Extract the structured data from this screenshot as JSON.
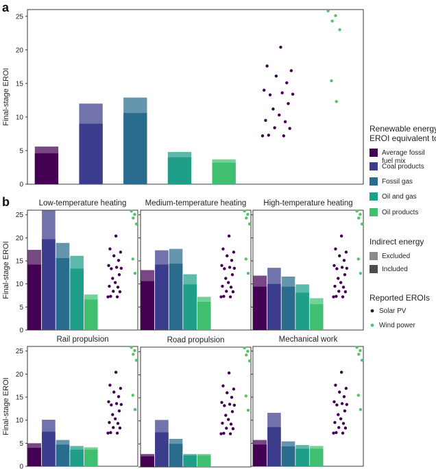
{
  "panel_a_letter": "a",
  "panel_b_letter": "b",
  "colors": {
    "Average fossil fuel mix": "#440154",
    "Coal products": "#3b3c8c",
    "Fossil gas": "#2a6c8e",
    "Oil and gas": "#1f9e89",
    "Oil products": "#3fbf6f",
    "Solar PV": "#440154",
    "Wind power": "#52c569"
  },
  "legend": {
    "renewable_heading": "Renewable energy\nEROI equivalent to",
    "renewable_items": [
      "Average fossil\nfuel mix",
      "Coal products",
      "Fossil gas",
      "Oil and gas",
      "Oil products"
    ],
    "indirect_heading": "Indirect energy",
    "indirect_items": [
      "Excluded",
      "Included"
    ],
    "reported_heading": "Reported EROIs",
    "reported_items": [
      "Solar PV",
      "Wind power"
    ]
  },
  "chart_data": [
    {
      "id": "a",
      "type": "bar",
      "title": "",
      "ylabel": "Final-stage EROI",
      "ylim": [
        0,
        26
      ],
      "yticks": [
        0,
        5,
        10,
        15,
        20,
        25
      ],
      "categories": [
        "Average fossil fuel mix",
        "Coal products",
        "Fossil gas",
        "Oil and gas",
        "Oil products"
      ],
      "series": [
        {
          "name": "Included",
          "values": [
            4.6,
            9.0,
            10.6,
            4.0,
            3.2
          ]
        },
        {
          "name": "Excluded",
          "values": [
            5.6,
            12.0,
            12.9,
            4.8,
            3.7
          ]
        }
      ],
      "reported": {
        "Solar PV": [
          20.4,
          17.6,
          16.9,
          16.1,
          15.1,
          14.0,
          13.6,
          13.4,
          13.3,
          12.0,
          11.2,
          10.3,
          9.5,
          9.3,
          8.4,
          8.3,
          7.3,
          7.2,
          7.2
        ],
        "Wind power": [
          25.8,
          25.1,
          24.3,
          23.0,
          15.4,
          12.3
        ]
      }
    },
    {
      "id": "b1",
      "type": "bar",
      "title": "Low-temperature heating",
      "ylabel": "Final-stage EROI",
      "ylim": [
        0,
        26
      ],
      "yticks": [
        0,
        5,
        10,
        15,
        20,
        25
      ],
      "categories": [
        "Average fossil fuel mix",
        "Coal products",
        "Fossil gas",
        "Oil and gas",
        "Oil products"
      ],
      "series": [
        {
          "name": "Included",
          "values": [
            14.2,
            19.7,
            15.6,
            13.3,
            6.6
          ]
        },
        {
          "name": "Excluded",
          "values": [
            17.4,
            26.0,
            18.9,
            16.1,
            7.7
          ]
        }
      ],
      "reported": {
        "Solar PV": [
          20.4,
          17.6,
          16.9,
          16.1,
          15.1,
          14.0,
          13.6,
          13.4,
          13.3,
          12.0,
          11.2,
          10.3,
          9.5,
          9.3,
          8.4,
          8.3,
          7.3,
          7.2,
          7.2
        ],
        "Wind power": [
          25.8,
          25.1,
          24.3,
          23.0,
          15.4,
          12.3
        ]
      }
    },
    {
      "id": "b2",
      "type": "bar",
      "title": "Medium-temperature heating",
      "ylabel": "",
      "ylim": [
        0,
        26
      ],
      "yticks": [
        0,
        5,
        10,
        15,
        20,
        25
      ],
      "categories": [
        "Average fossil fuel mix",
        "Coal products",
        "Fossil gas",
        "Oil and gas",
        "Oil products"
      ],
      "series": [
        {
          "name": "Included",
          "values": [
            10.6,
            14.2,
            14.4,
            9.9,
            6.1
          ]
        },
        {
          "name": "Excluded",
          "values": [
            13.0,
            17.3,
            17.6,
            12.1,
            7.2
          ]
        }
      ],
      "reported": {
        "Solar PV": [
          20.4,
          17.6,
          16.9,
          16.1,
          15.1,
          14.0,
          13.6,
          13.4,
          13.3,
          12.0,
          11.2,
          10.3,
          9.5,
          9.3,
          8.4,
          8.3,
          7.3,
          7.2,
          7.2
        ],
        "Wind power": [
          25.8,
          25.1,
          24.3,
          23.0,
          15.4,
          12.3
        ]
      }
    },
    {
      "id": "b3",
      "type": "bar",
      "title": "High-temperature heating",
      "ylabel": "",
      "ylim": [
        0,
        26
      ],
      "yticks": [
        0,
        5,
        10,
        15,
        20,
        25
      ],
      "categories": [
        "Average fossil fuel mix",
        "Coal products",
        "Fossil gas",
        "Oil and gas",
        "Oil products"
      ],
      "series": [
        {
          "name": "Included",
          "values": [
            9.4,
            10.0,
            9.4,
            8.1,
            5.6
          ]
        },
        {
          "name": "Excluded",
          "values": [
            11.8,
            13.5,
            11.6,
            9.9,
            6.9
          ]
        }
      ],
      "reported": {
        "Solar PV": [
          20.4,
          17.6,
          16.9,
          16.1,
          15.1,
          14.0,
          13.6,
          13.4,
          13.3,
          12.0,
          11.2,
          10.3,
          9.5,
          9.3,
          8.4,
          8.3,
          7.3,
          7.2,
          7.2
        ],
        "Wind power": [
          25.8,
          25.1,
          24.3,
          23.0,
          15.4,
          12.3
        ]
      }
    },
    {
      "id": "b4",
      "type": "bar",
      "title": "Rail propulsion",
      "ylabel": "Final-stage EROI",
      "ylim": [
        0,
        26
      ],
      "yticks": [
        0,
        5,
        10,
        15,
        20,
        25
      ],
      "categories": [
        "Average fossil fuel mix",
        "Coal products",
        "Fossil gas",
        "Oil and gas",
        "Oil products"
      ],
      "series": [
        {
          "name": "Included",
          "values": [
            4.0,
            7.5,
            4.7,
            3.6,
            3.6
          ]
        },
        {
          "name": "Excluded",
          "values": [
            5.0,
            10.1,
            5.7,
            4.4,
            4.1
          ]
        }
      ],
      "reported": {
        "Solar PV": [
          20.4,
          17.6,
          16.9,
          16.1,
          15.1,
          14.0,
          13.6,
          13.4,
          13.3,
          12.0,
          11.2,
          10.3,
          9.5,
          9.3,
          8.4,
          8.3,
          7.3,
          7.2,
          7.2
        ],
        "Wind power": [
          25.8,
          25.1,
          24.3,
          23.0,
          15.4,
          12.3
        ]
      }
    },
    {
      "id": "b5",
      "type": "bar",
      "title": "Road propulsion",
      "ylabel": "",
      "ylim": [
        0,
        26
      ],
      "yticks": [
        0,
        5,
        10,
        15,
        20,
        25
      ],
      "categories": [
        "Average fossil fuel mix",
        "Coal products",
        "Fossil gas",
        "Oil and gas",
        "Oil products"
      ],
      "series": [
        {
          "name": "Included",
          "values": [
            2.3,
            7.5,
            5.0,
            2.5,
            2.5
          ]
        },
        {
          "name": "Excluded",
          "values": [
            2.8,
            10.2,
            6.1,
            2.8,
            2.8
          ]
        }
      ],
      "reported": {
        "Solar PV": [
          20.4,
          17.6,
          16.9,
          16.1,
          15.1,
          14.0,
          13.6,
          13.4,
          13.3,
          12.0,
          11.2,
          10.3,
          9.5,
          9.3,
          8.4,
          8.3,
          7.3,
          7.2,
          7.2
        ],
        "Wind power": [
          25.8,
          25.1,
          24.3,
          23.0,
          15.4,
          12.3
        ]
      }
    },
    {
      "id": "b6",
      "type": "bar",
      "title": "Mechanical work",
      "ylabel": "",
      "ylim": [
        0,
        26
      ],
      "yticks": [
        0,
        5,
        10,
        15,
        20,
        25
      ],
      "categories": [
        "Average fossil fuel mix",
        "Coal products",
        "Fossil gas",
        "Oil and gas",
        "Oil products"
      ],
      "series": [
        {
          "name": "Included",
          "values": [
            4.7,
            8.5,
            4.3,
            3.8,
            3.8
          ]
        },
        {
          "name": "Excluded",
          "values": [
            5.7,
            11.6,
            5.4,
            4.6,
            4.4
          ]
        }
      ],
      "reported": {
        "Solar PV": [
          20.4,
          17.6,
          16.9,
          16.1,
          15.1,
          14.0,
          13.6,
          13.4,
          13.3,
          12.0,
          11.2,
          10.3,
          9.5,
          9.3,
          8.4,
          8.3,
          7.3,
          7.2,
          7.2
        ],
        "Wind power": [
          25.8,
          25.1,
          24.3,
          23.0,
          15.4,
          12.3
        ]
      }
    }
  ]
}
